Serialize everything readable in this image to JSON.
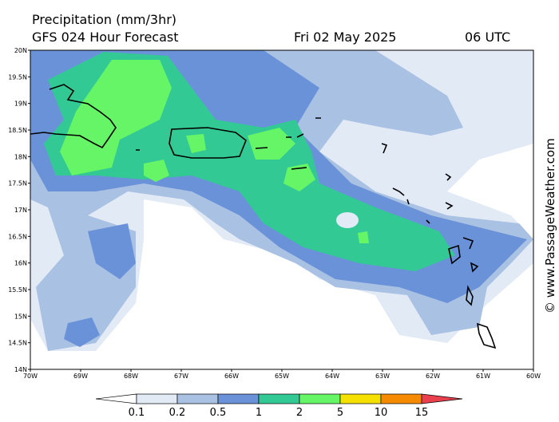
{
  "header": {
    "title": "Precipitation (mm/3hr)",
    "model": "GFS 024 Hour Forecast",
    "date": "Fri 02 May 2025",
    "time": "06 UTC"
  },
  "map": {
    "lat_labels": [
      "20N",
      "19.5N",
      "19N",
      "18.5N",
      "18N",
      "17.5N",
      "17N",
      "16.5N",
      "16N",
      "15.5N",
      "15N",
      "14.5N",
      "14N"
    ],
    "lon_labels": [
      "70W",
      "69W",
      "68W",
      "67W",
      "66W",
      "65W",
      "64W",
      "63W",
      "62W",
      "61W",
      "60W"
    ]
  },
  "colorbar": {
    "levels": [
      "0.1",
      "0.2",
      "0.5",
      "1",
      "2",
      "5",
      "10",
      "15"
    ],
    "colors": [
      "#ffffff",
      "#e2eaf6",
      "#a9c1e2",
      "#6a92d8",
      "#33c995",
      "#66f566",
      "#f5e000",
      "#f58a00",
      "#e8404c"
    ]
  },
  "watermark": "© www.PassageWeather.com"
}
